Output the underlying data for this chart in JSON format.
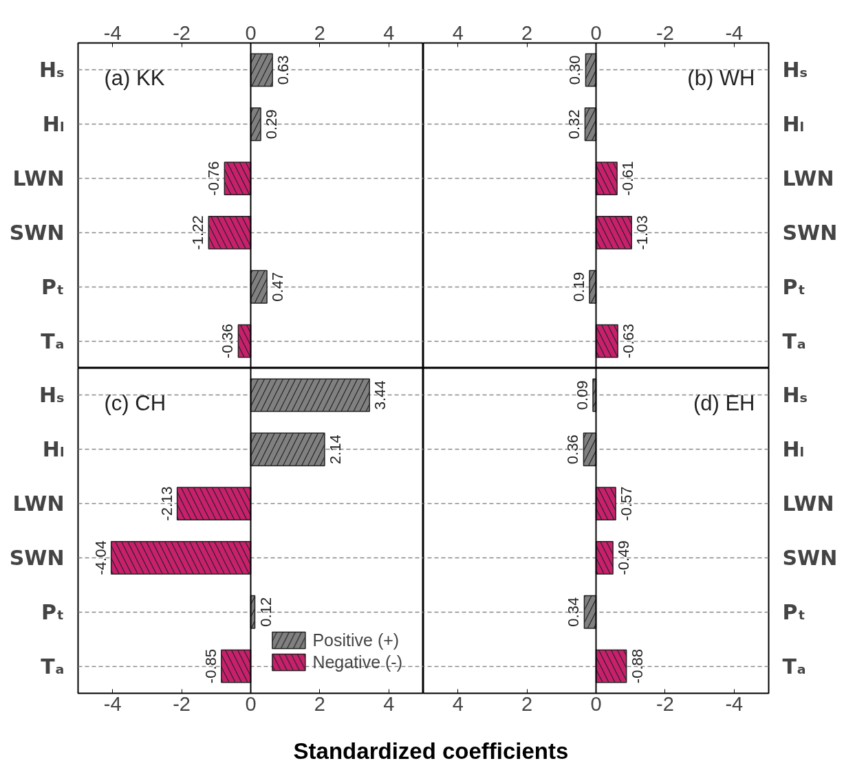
{
  "chart_data": [
    {
      "type": "bar",
      "orientation": "horizontal",
      "title": "(a) KK",
      "categories": [
        "Hₛ",
        "Hₗ",
        "LWN",
        "SWN",
        "Pₜ",
        "Tₐ"
      ],
      "xlim": [
        -5,
        5
      ],
      "xticks": [
        -4,
        -2,
        0,
        2,
        4
      ],
      "grid": "y",
      "legend": false,
      "ref_lines": [
        {
          "axis": "x",
          "value": 0,
          "color": "#000000"
        }
      ],
      "series": [
        {
          "color": "#808080",
          "values": [
            0.63,
            0.29,
            null,
            null,
            0.47,
            null
          ],
          "value_labels": [
            "0.63",
            "0.29",
            null,
            null,
            "0.47",
            null
          ]
        },
        {
          "color": "#c8206c",
          "values": [
            null,
            null,
            -0.76,
            -1.22,
            null,
            -0.36
          ],
          "value_labels": [
            null,
            null,
            "-0.76",
            "-1.22",
            null,
            "-0.36"
          ]
        }
      ]
    },
    {
      "type": "bar",
      "orientation": "horizontal",
      "title": "(b) WH",
      "categories": [
        "Hₛ",
        "Hₗ",
        "LWN",
        "SWN",
        "Pₜ",
        "Tₐ"
      ],
      "xlim": [
        5,
        -5
      ],
      "xticks": [
        4,
        2,
        0,
        -2,
        -4
      ],
      "grid": "y",
      "legend": false,
      "ref_lines": [
        {
          "axis": "x",
          "value": 0,
          "color": "#000000"
        }
      ],
      "series": [
        {
          "color": "#808080",
          "values": [
            0.3,
            0.32,
            null,
            null,
            0.19,
            null
          ],
          "value_labels": [
            "0.30",
            "0.32",
            null,
            null,
            "0.19",
            null
          ]
        },
        {
          "color": "#c8206c",
          "values": [
            null,
            null,
            -0.61,
            -1.03,
            null,
            -0.63
          ],
          "value_labels": [
            null,
            null,
            "-0.61",
            "-1.03",
            null,
            "-0.63"
          ]
        }
      ]
    },
    {
      "type": "bar",
      "orientation": "horizontal",
      "title": "(c) CH",
      "xlabel": "Standardized coefficients",
      "categories": [
        "Hₛ",
        "Hₗ",
        "LWN",
        "SWN",
        "Pₜ",
        "Tₐ"
      ],
      "xlim": [
        -5,
        5
      ],
      "xticks": [
        -4,
        -2,
        0,
        2,
        4
      ],
      "grid": "y",
      "legend": "bottom right",
      "ref_lines": [
        {
          "axis": "x",
          "value": 0,
          "color": "#000000"
        }
      ],
      "series": [
        {
          "name": "Positive (+)",
          "color": "#808080",
          "values": [
            3.44,
            2.14,
            null,
            null,
            0.12,
            null
          ],
          "value_labels": [
            "3.44",
            "2.14",
            null,
            null,
            "0.12",
            null
          ]
        },
        {
          "name": "Negative (-)",
          "color": "#c8206c",
          "values": [
            null,
            null,
            -2.13,
            -4.04,
            null,
            -0.85
          ],
          "value_labels": [
            null,
            null,
            "-2.13",
            "-4.04",
            null,
            "-0.85"
          ]
        }
      ]
    },
    {
      "type": "bar",
      "orientation": "horizontal",
      "title": "(d) EH",
      "categories": [
        "Hₛ",
        "Hₗ",
        "LWN",
        "SWN",
        "Pₜ",
        "Tₐ"
      ],
      "xlim": [
        5,
        -5
      ],
      "xticks": [
        4,
        2,
        0,
        -2,
        -4
      ],
      "grid": "y",
      "legend": false,
      "ref_lines": [
        {
          "axis": "x",
          "value": 0,
          "color": "#000000"
        }
      ],
      "series": [
        {
          "color": "#808080",
          "values": [
            0.09,
            0.36,
            null,
            null,
            0.34,
            null
          ],
          "value_labels": [
            "0.09",
            "0.36",
            null,
            null,
            "0.34",
            null
          ]
        },
        {
          "color": "#c8206c",
          "values": [
            null,
            null,
            -0.57,
            -0.49,
            null,
            -0.88
          ],
          "value_labels": [
            null,
            null,
            "-0.57",
            "-0.49",
            null,
            "-0.88"
          ]
        }
      ]
    }
  ]
}
